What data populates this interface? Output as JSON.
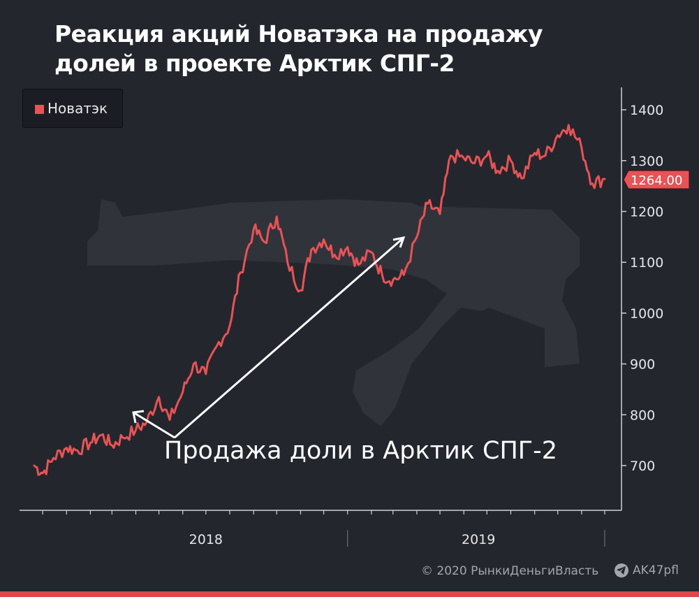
{
  "title": {
    "line1": "Реакция акций Новатэка на продажу",
    "line2": "долей в проекте Арктик СПГ-2"
  },
  "legend": {
    "label": "Новатэк"
  },
  "annotation": {
    "text": "Продажа доли в Арктик СПГ-2"
  },
  "footer": {
    "copyright": "© 2020  РынкиДеньгиВласть",
    "handle": "AK47pfl"
  },
  "icons": {
    "telegram": "telegram-icon",
    "watermark": "rifle-silhouette"
  },
  "colors": {
    "series": "#e85355",
    "background": "#24262e",
    "axis": "#cfd1d6",
    "last_price_bg": "#e85355"
  },
  "chart_data": {
    "type": "line",
    "title": "Реакция акций Новатэка на продажу долей в проекте Арктик СПГ-2",
    "xlabel": "",
    "ylabel": "",
    "x_range": [
      "2017-11",
      "2019-12"
    ],
    "x_ticks": [
      "2018",
      "2019"
    ],
    "ylim": [
      650,
      1430
    ],
    "y_ticks": [
      700,
      800,
      900,
      1000,
      1100,
      1200,
      1300,
      1400
    ],
    "last_price_label": "1264.00",
    "grid": false,
    "legend_position": "top-left",
    "series": [
      {
        "name": "Новатэк",
        "x": [
          "2017-11-20",
          "2017-12-01",
          "2017-12-15",
          "2018-01-01",
          "2018-01-15",
          "2018-02-01",
          "2018-02-15",
          "2018-03-01",
          "2018-03-15",
          "2018-04-01",
          "2018-04-15",
          "2018-05-01",
          "2018-05-15",
          "2018-06-01",
          "2018-06-15",
          "2018-07-01",
          "2018-07-15",
          "2018-08-01",
          "2018-08-15",
          "2018-09-01",
          "2018-09-15",
          "2018-10-01",
          "2018-10-15",
          "2018-11-01",
          "2018-11-15",
          "2018-12-01",
          "2018-12-15",
          "2019-01-01",
          "2019-01-15",
          "2019-02-01",
          "2019-02-15",
          "2019-03-01",
          "2019-03-15",
          "2019-04-01",
          "2019-04-15",
          "2019-05-01",
          "2019-05-15",
          "2019-06-01",
          "2019-06-15",
          "2019-07-01",
          "2019-07-15",
          "2019-08-01",
          "2019-08-15",
          "2019-09-01",
          "2019-09-15",
          "2019-10-01",
          "2019-10-15",
          "2019-11-01",
          "2019-11-15",
          "2019-12-01"
        ],
        "values": [
          700,
          685,
          715,
          735,
          730,
          745,
          760,
          740,
          755,
          770,
          785,
          835,
          790,
          845,
          900,
          880,
          935,
          975,
          1080,
          1165,
          1140,
          1190,
          1100,
          1045,
          1125,
          1145,
          1115,
          1130,
          1095,
          1120,
          1075,
          1065,
          1075,
          1150,
          1215,
          1195,
          1310,
          1305,
          1295,
          1310,
          1280,
          1300,
          1265,
          1315,
          1310,
          1350,
          1370,
          1325,
          1255,
          1264
        ]
      }
    ]
  }
}
